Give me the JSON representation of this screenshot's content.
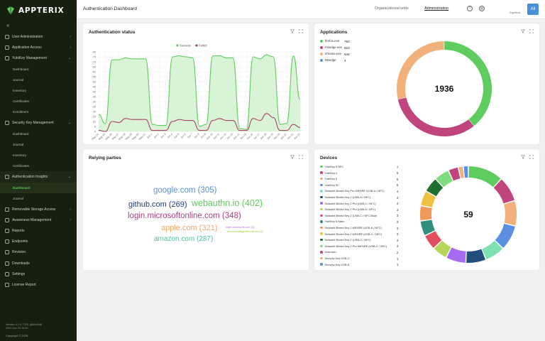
{
  "app": {
    "name": "APPTERIX",
    "version": "Version 4.2.0.7 001 (880d4b8)",
    "build": "2020 Jun 23 10:26",
    "copyright": "Copyright © 2026"
  },
  "sidebar": {
    "collapse": "«",
    "items": [
      {
        "label": "User Administration",
        "icon": "user-icon",
        "chevron": "›"
      },
      {
        "label": "Application Access",
        "icon": "shield-icon",
        "chevron": "›"
      },
      {
        "label": "YubiKey Management",
        "icon": "key-icon",
        "chevron": "⌄",
        "subs": [
          "Dashboard",
          "Journal",
          "Inventory",
          "Certificates",
          "Enrollment"
        ]
      },
      {
        "label": "Security Key Management",
        "icon": "key-icon",
        "chevron": "⌄",
        "subs": [
          "Dashboard",
          "Journal",
          "Inventory",
          "Certificates"
        ]
      },
      {
        "label": "Authentication Insights",
        "icon": "insights-icon",
        "chevron": "⌄",
        "subs": [
          "Dashboard",
          "Journal"
        ]
      },
      {
        "label": "Removable Storage Access",
        "icon": "storage-icon",
        "chevron": "›"
      },
      {
        "label": "Awareness Management",
        "icon": "eye-icon",
        "chevron": "›"
      },
      {
        "label": "Reports",
        "icon": "report-icon"
      },
      {
        "label": "Endpoints",
        "icon": "endpoint-icon"
      },
      {
        "label": "Revision",
        "icon": "revision-icon"
      },
      {
        "label": "Downloads",
        "icon": "download-icon"
      },
      {
        "label": "Settings",
        "icon": "gear-icon"
      },
      {
        "label": "License Report",
        "icon": "license-icon"
      }
    ],
    "active_sub": "Dashboard"
  },
  "header": {
    "title": "Authentication Dashboard",
    "links": [
      "Organizational units",
      "Administration"
    ],
    "user": "EgoMod",
    "all_button": "All"
  },
  "auth_status": {
    "title": "Authentication status",
    "legend": [
      "Success",
      "Failed"
    ]
  },
  "applications": {
    "title": "Applications",
    "items": [
      {
        "label": "firefox.exe",
        "value": "760",
        "color": "#5fcc5f"
      },
      {
        "label": "msedge.exe",
        "value": "623",
        "color": "#c0447e"
      },
      {
        "label": "chrome.exe",
        "value": "549",
        "color": "#f0b27a"
      },
      {
        "label": "Msedge",
        "value": "4",
        "color": "#5b8fe0"
      }
    ],
    "total": "1936"
  },
  "relying_parties": {
    "title": "Relying parties",
    "words": [
      {
        "text": "google.com (305)",
        "color": "#5b8fe0",
        "size": 11.5
      },
      {
        "text": "github.com (269)",
        "color": "#1f3f6f",
        "size": 11
      },
      {
        "text": "webauthn.io (402)",
        "color": "#5fcc5f",
        "size": 12.5
      },
      {
        "text": "login.microsoftonline.com (348)",
        "color": "#a93f8a",
        "size": 11.5
      },
      {
        "text": "apple.com (321)",
        "color": "#f0a760",
        "size": 11
      },
      {
        "text": "amazon.com (287)",
        "color": "#4dc59c",
        "size": 10
      },
      {
        "text": "login.microsoft.com (3)",
        "color": "#b46bd6",
        "size": 4
      },
      {
        "text": "demo.visitlogintest.demo (3)",
        "color": "#9bc43a",
        "size": 4
      }
    ]
  },
  "devices": {
    "title": "Devices",
    "items": [
      {
        "label": "YubiKey 5 NFC",
        "value": "7",
        "color": "#5fcc5f"
      },
      {
        "label": "YubiKey 4",
        "value": "5",
        "color": "#c0447e"
      },
      {
        "label": "YubiKey 5",
        "value": "5",
        "color": "#f0b27a"
      },
      {
        "label": "YubiKey 5C",
        "value": "5",
        "color": "#5b8fe0"
      },
      {
        "label": "Swissbit iShield Key Pro MIFARE (USB-A / NFC)",
        "value": "4",
        "color": "#7fe0b0"
      },
      {
        "label": "Swissbit iShield Key 2 (USB-A / NFC)",
        "value": "4",
        "color": "#1f4f7a"
      },
      {
        "label": "Swissbit iShield Key 2 Pro (USB-C / NFC)",
        "value": "4",
        "color": "#a66bf0"
      },
      {
        "label": "Swissbit iShield Key 2 Pro (USB-A / NFC)",
        "value": "3",
        "color": "#b6d65a"
      },
      {
        "label": "Swissbit iShield Key 2 (USB-C / NFC Blue)",
        "value": "3",
        "color": "#e04f5f"
      },
      {
        "label": "YubiKey 5 Nano",
        "value": "3",
        "color": "#2f8f7f"
      },
      {
        "label": "Swissbit iShield Key 2 MIFARE (USB-A / NFC)",
        "value": "3",
        "color": "#f09a5a"
      },
      {
        "label": "Swissbit iShield Key 2 MIFARE (USB-C / NFC)",
        "value": "3",
        "color": "#f0c040"
      },
      {
        "label": "Swissbit iShield Key 2 (USB-C / NFC)",
        "value": "3",
        "color": "#1f6f2f"
      },
      {
        "label": "Swissbit iShield Key 2 Pro MIFARE (USB-C / NFC)",
        "value": "3",
        "color": "#7fdc7f"
      },
      {
        "label": "Unknown",
        "value": "2",
        "color": "#c0447e"
      },
      {
        "label": "Security Key USB-C",
        "value": "1",
        "color": "#f0b27a"
      },
      {
        "label": "Security Key USB-A",
        "value": "1",
        "color": "#5b8fe0"
      }
    ],
    "total": "59"
  },
  "chart_data": [
    {
      "type": "line",
      "title": "Authentication status",
      "x": [
        "May 22",
        "May 24",
        "May 26",
        "May 27",
        "May 28",
        "May 29",
        "May 30",
        "May 31",
        "Jun 1",
        "Jun 2",
        "Jun 3",
        "Jun 4",
        "Jun 5",
        "Jun 6",
        "Jun 7",
        "Jun 8",
        "Jun 9",
        "Jun 10",
        "Jun 11",
        "Jun 12",
        "Jun 13",
        "Jun 14",
        "Jun 15",
        "Jun 16",
        "Jun 17",
        "Jun 18",
        "Jun 19",
        "Jun 20",
        "Jun 21",
        "Jun 22",
        "Jun 23"
      ],
      "series": [
        {
          "name": "Success",
          "color": "#5fcc5f",
          "values": [
            17,
            8,
            72,
            72,
            74,
            73,
            73,
            73,
            7,
            6,
            6,
            75,
            76,
            75,
            74,
            5,
            7,
            76,
            76,
            74,
            74,
            3,
            2,
            75,
            73,
            77,
            75,
            7,
            8,
            76,
            32
          ]
        },
        {
          "name": "Failed",
          "color": "#a93f6a",
          "values": [
            1,
            0,
            10,
            9,
            13,
            12,
            12,
            12,
            1,
            1,
            1,
            10,
            12,
            11,
            11,
            1,
            1,
            11,
            13,
            11,
            11,
            1,
            1,
            13,
            11,
            18,
            14,
            1,
            1,
            7,
            4
          ]
        }
      ],
      "ylim": [
        0,
        80
      ],
      "yticks": [
        0,
        5,
        10,
        15,
        20,
        25,
        30,
        35,
        40,
        45,
        50,
        55,
        60,
        65,
        70,
        75,
        80
      ],
      "grid": true,
      "legend": "top-center"
    },
    {
      "type": "pie",
      "title": "Applications",
      "categories": [
        "firefox.exe",
        "msedge.exe",
        "chrome.exe",
        "Msedge"
      ],
      "values": [
        760,
        623,
        549,
        4
      ],
      "center_label": "1936"
    },
    {
      "type": "pie",
      "title": "Devices",
      "categories": [
        "YubiKey 5 NFC",
        "YubiKey 4",
        "YubiKey 5",
        "YubiKey 5C",
        "Swissbit iShield Key Pro MIFARE (USB-A / NFC)",
        "Swissbit iShield Key 2 (USB-A / NFC)",
        "Swissbit iShield Key 2 Pro (USB-C / NFC)",
        "Swissbit iShield Key 2 Pro (USB-A / NFC)",
        "Swissbit iShield Key 2 (USB-C / NFC Blue)",
        "YubiKey 5 Nano",
        "Swissbit iShield Key 2 MIFARE (USB-A / NFC)",
        "Swissbit iShield Key 2 MIFARE (USB-C / NFC)",
        "Swissbit iShield Key 2 (USB-C / NFC)",
        "Swissbit iShield Key 2 Pro MIFARE (USB-C / NFC)",
        "Unknown",
        "Security Key USB-C",
        "Security Key USB-A"
      ],
      "values": [
        7,
        5,
        5,
        5,
        4,
        4,
        4,
        3,
        3,
        3,
        3,
        3,
        3,
        3,
        2,
        1,
        1
      ],
      "center_label": "59"
    }
  ]
}
